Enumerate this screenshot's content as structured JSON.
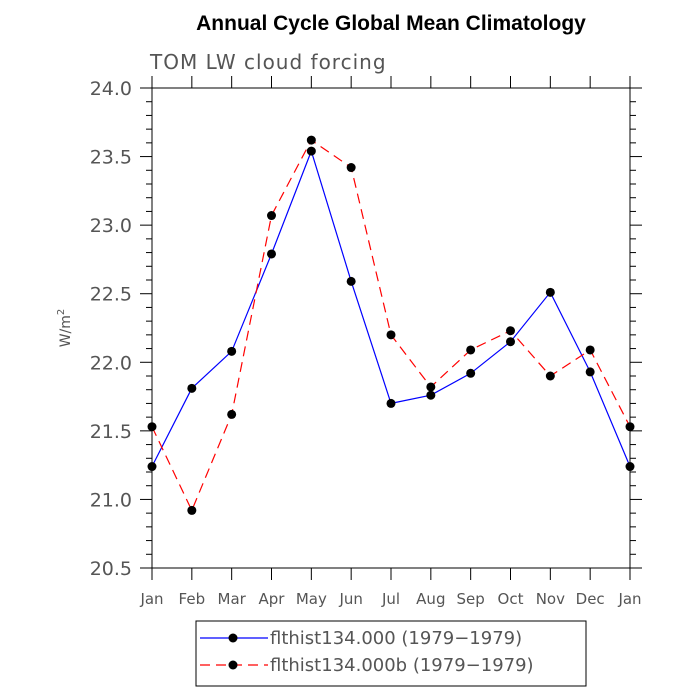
{
  "chart_data": {
    "type": "line",
    "title": "Annual Cycle Global Mean Climatology",
    "subtitle": "TOM LW cloud forcing",
    "xlabel": "",
    "ylabel": "W/m",
    "ylabel_sup": "2",
    "categories": [
      "Jan",
      "Feb",
      "Mar",
      "Apr",
      "May",
      "Jun",
      "Jul",
      "Aug",
      "Sep",
      "Oct",
      "Nov",
      "Dec",
      "Jan"
    ],
    "ylim": [
      20.5,
      24.0
    ],
    "yticks": [
      20.5,
      21.0,
      21.5,
      22.0,
      22.5,
      23.0,
      23.5,
      24.0
    ],
    "ytick_labels": [
      "20.5",
      "21.0",
      "21.5",
      "22.0",
      "22.5",
      "23.0",
      "23.5",
      "24.0"
    ],
    "y_minor_step": 0.1,
    "grid": false,
    "legend_position": "bottom-center",
    "series": [
      {
        "name": "flthist134.000 (1979−1979)",
        "color": "#0000ff",
        "dash": "solid",
        "values": [
          21.24,
          21.81,
          22.08,
          22.79,
          23.54,
          22.59,
          21.7,
          21.76,
          21.92,
          22.15,
          22.51,
          21.93,
          21.24
        ]
      },
      {
        "name": "flthist134.000b (1979−1979)",
        "color": "#ff0000",
        "dash": "dashed",
        "values": [
          21.53,
          20.92,
          21.62,
          23.07,
          23.62,
          23.42,
          22.2,
          21.82,
          22.09,
          22.23,
          21.9,
          22.09,
          21.53
        ]
      }
    ]
  }
}
